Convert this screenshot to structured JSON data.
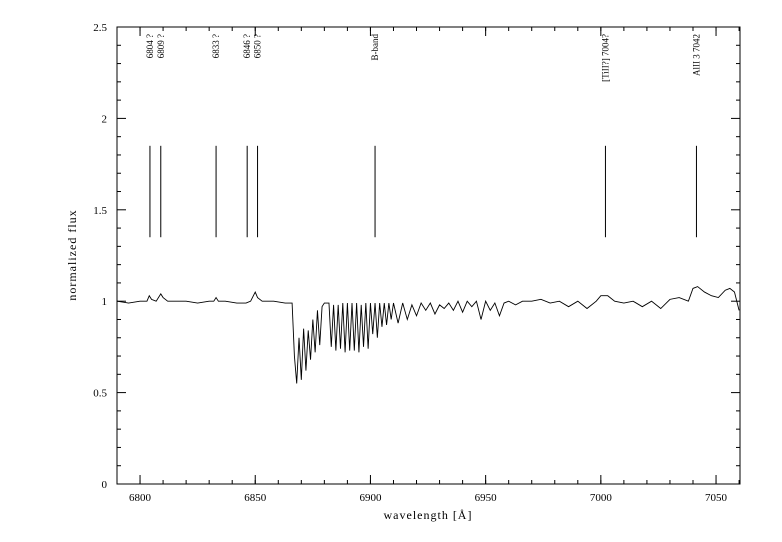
{
  "chart_data": {
    "type": "line",
    "xlabel": "wavelength [Å]",
    "ylabel": "normalized flux",
    "color": "#000000",
    "xlim": [
      6790,
      7060.4
    ],
    "ylim": [
      0,
      2.5
    ],
    "xticks": [
      6800,
      6850,
      6900,
      6950,
      7000,
      7050
    ],
    "yticks": [
      0,
      0.5,
      1,
      1.5,
      2,
      2.5
    ],
    "xminorticks": [
      6790,
      6800,
      6810,
      6820,
      6830,
      6840,
      6850,
      6860,
      6870,
      6880,
      6890,
      6900,
      6910,
      6920,
      6930,
      6940,
      6950,
      6960,
      6970,
      6980,
      6990,
      7000,
      7010,
      7020,
      7030,
      7040,
      7050,
      7060
    ],
    "yminorticks": [
      0.1,
      0.2,
      0.3,
      0.4,
      0.6,
      0.7,
      0.8,
      0.9,
      1.1,
      1.2,
      1.3,
      1.4,
      1.6,
      1.7,
      1.8,
      1.9,
      2.1,
      2.2,
      2.3,
      2.4
    ],
    "x": [
      6790,
      6795,
      6800,
      6803,
      6804,
      6805,
      6807,
      6809,
      6810,
      6812,
      6816,
      6820,
      6825,
      6830,
      6832,
      6833,
      6834,
      6837,
      6842,
      6846,
      6848,
      6850,
      6851,
      6853,
      6858,
      6863,
      6866,
      6867,
      6868,
      6869,
      6870,
      6871,
      6872,
      6873,
      6874,
      6875,
      6876,
      6877,
      6878,
      6879,
      6880,
      6881,
      6882,
      6883,
      6884,
      6885,
      6886,
      6887,
      6888,
      6889,
      6890,
      6891,
      6892,
      6893,
      6894,
      6895,
      6896,
      6897,
      6898,
      6899,
      6900,
      6901,
      6902,
      6903,
      6904,
      6905,
      6906,
      6907,
      6908,
      6909,
      6910,
      6912,
      6914,
      6916,
      6918,
      6920,
      6922,
      6924,
      6926,
      6928,
      6930,
      6932,
      6934,
      6936,
      6938,
      6940,
      6942,
      6944,
      6946,
      6948,
      6950,
      6952,
      6954,
      6956,
      6958,
      6960,
      6963,
      6966,
      6970,
      6974,
      6978,
      6982,
      6986,
      6990,
      6994,
      6998,
      7000,
      7003,
      7006,
      7010,
      7014,
      7018,
      7022,
      7026,
      7030,
      7034,
      7038,
      7040,
      7042,
      7045,
      7048,
      7051,
      7054,
      7056,
      7058,
      7060
    ],
    "values": [
      1.0,
      0.99,
      1.0,
      1.0,
      1.03,
      1.01,
      1.0,
      1.04,
      1.02,
      1.0,
      1.0,
      1.0,
      0.99,
      1.0,
      1.0,
      1.02,
      1.0,
      1.0,
      0.99,
      0.99,
      1.0,
      1.05,
      1.02,
      1.0,
      1.0,
      0.99,
      0.99,
      0.7,
      0.55,
      0.8,
      0.57,
      0.85,
      0.62,
      0.84,
      0.68,
      0.9,
      0.72,
      0.95,
      0.76,
      0.97,
      0.99,
      0.99,
      0.99,
      0.75,
      0.98,
      0.73,
      0.98,
      0.74,
      0.99,
      0.72,
      0.99,
      0.73,
      0.99,
      0.73,
      0.99,
      0.72,
      0.98,
      0.75,
      0.99,
      0.74,
      0.99,
      0.82,
      0.99,
      0.8,
      0.99,
      0.86,
      0.99,
      0.87,
      0.99,
      0.9,
      0.99,
      0.88,
      0.99,
      0.9,
      0.98,
      0.92,
      0.99,
      0.95,
      0.99,
      0.93,
      0.98,
      0.96,
      0.99,
      0.95,
      1.0,
      0.94,
      1.0,
      0.97,
      1.0,
      0.9,
      1.0,
      0.95,
      0.99,
      0.92,
      0.99,
      1.0,
      0.98,
      1.0,
      1.0,
      1.01,
      0.99,
      1.0,
      0.97,
      1.0,
      0.96,
      1.0,
      1.03,
      1.03,
      1.0,
      0.99,
      1.0,
      0.97,
      1.0,
      0.96,
      1.01,
      1.02,
      1.0,
      1.07,
      1.08,
      1.05,
      1.03,
      1.02,
      1.06,
      1.07,
      1.05,
      0.95
    ],
    "marker_y": [
      1.35,
      1.85
    ],
    "markers": [
      {
        "x": 6804.3,
        "label": "6804 ?"
      },
      {
        "x": 6809,
        "label": "6809 ?"
      },
      {
        "x": 6833,
        "label": "6833 ?"
      },
      {
        "x": 6846.5,
        "label": "6846 ?"
      },
      {
        "x": 6851,
        "label": "6850 ?"
      },
      {
        "x": 6902,
        "label": "B-band"
      },
      {
        "x": 7002,
        "label": "[TiII?] 7004?"
      },
      {
        "x": 7041.5,
        "label": "AlII 3 7042"
      }
    ]
  }
}
